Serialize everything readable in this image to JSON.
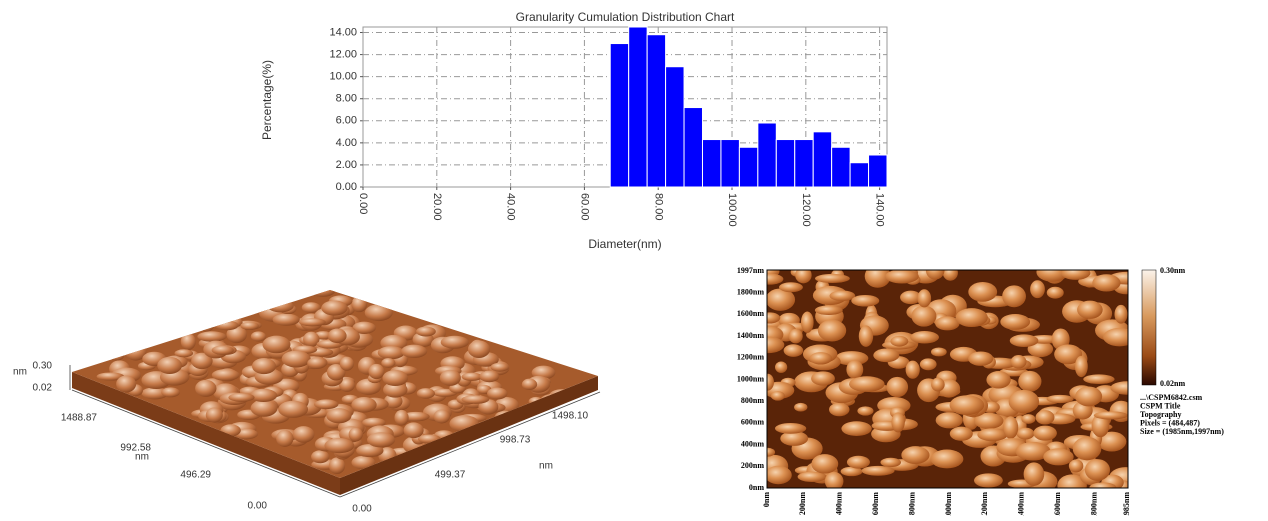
{
  "chart_data": {
    "type": "histogram",
    "title": "Granularity Cumulation Distribution  Chart",
    "x_label": "Diameter(nm)",
    "y_label": "Percentage(%)",
    "color": "#0000ff",
    "grid": true,
    "bins": [
      67,
      72,
      77,
      82,
      87,
      92,
      97,
      102,
      107,
      112,
      117,
      122,
      127,
      132,
      137,
      142
    ],
    "values": [
      13.0,
      14.5,
      13.8,
      10.9,
      7.2,
      4.3,
      4.3,
      3.6,
      5.8,
      4.3,
      4.3,
      5.0,
      3.6,
      2.2,
      2.9
    ],
    "xlim": [
      0,
      142
    ],
    "ylim": [
      0,
      14.5
    ],
    "xticks": [
      {
        "value": 0,
        "label": "0.00"
      },
      {
        "value": 20,
        "label": "20.00"
      },
      {
        "value": 40,
        "label": "40.00"
      },
      {
        "value": 60,
        "label": "60.00"
      },
      {
        "value": 80,
        "label": "80.00"
      },
      {
        "value": 100,
        "label": "100.00"
      },
      {
        "value": 120,
        "label": "120.00"
      },
      {
        "value": 140,
        "label": "140.00"
      }
    ],
    "yticks": [
      {
        "value": 0,
        "label": "0.00"
      },
      {
        "value": 2,
        "label": "2.00"
      },
      {
        "value": 4,
        "label": "4.00"
      },
      {
        "value": 6,
        "label": "6.00"
      },
      {
        "value": 8,
        "label": "8.00"
      },
      {
        "value": 10,
        "label": "10.00"
      },
      {
        "value": 12,
        "label": "12.00"
      },
      {
        "value": 14,
        "label": "14.00"
      }
    ]
  },
  "afm_3d": {
    "z_max": "0.30",
    "z_unit": "nm",
    "z_min": "0.02",
    "y_ticks": [
      "1488.87",
      "992.58",
      "496.29",
      "0.00"
    ],
    "y_unit": "nm",
    "x_ticks": [
      "0.00",
      "499.37",
      "998.73",
      "1498.10"
    ],
    "x_unit": "nm"
  },
  "afm_2d": {
    "y_ticks": [
      "0nm",
      "200nm",
      "400nm",
      "600nm",
      "800nm",
      "1000nm",
      "1200nm",
      "1400nm",
      "1600nm",
      "1800nm",
      "1997nm"
    ],
    "x_ticks": [
      "0nm",
      "200nm",
      "400nm",
      "600nm",
      "800nm",
      "1000nm",
      "1200nm",
      "1400nm",
      "1600nm",
      "1800nm",
      "1985nm"
    ],
    "colorbar_max": "0.30nm",
    "colorbar_min": "0.02nm",
    "info": [
      "...\\CSPM6842.csm",
      "CSPM Title",
      "Topography",
      "Pixels = (484,487)",
      "Size = (1985nm,1997nm)"
    ]
  }
}
